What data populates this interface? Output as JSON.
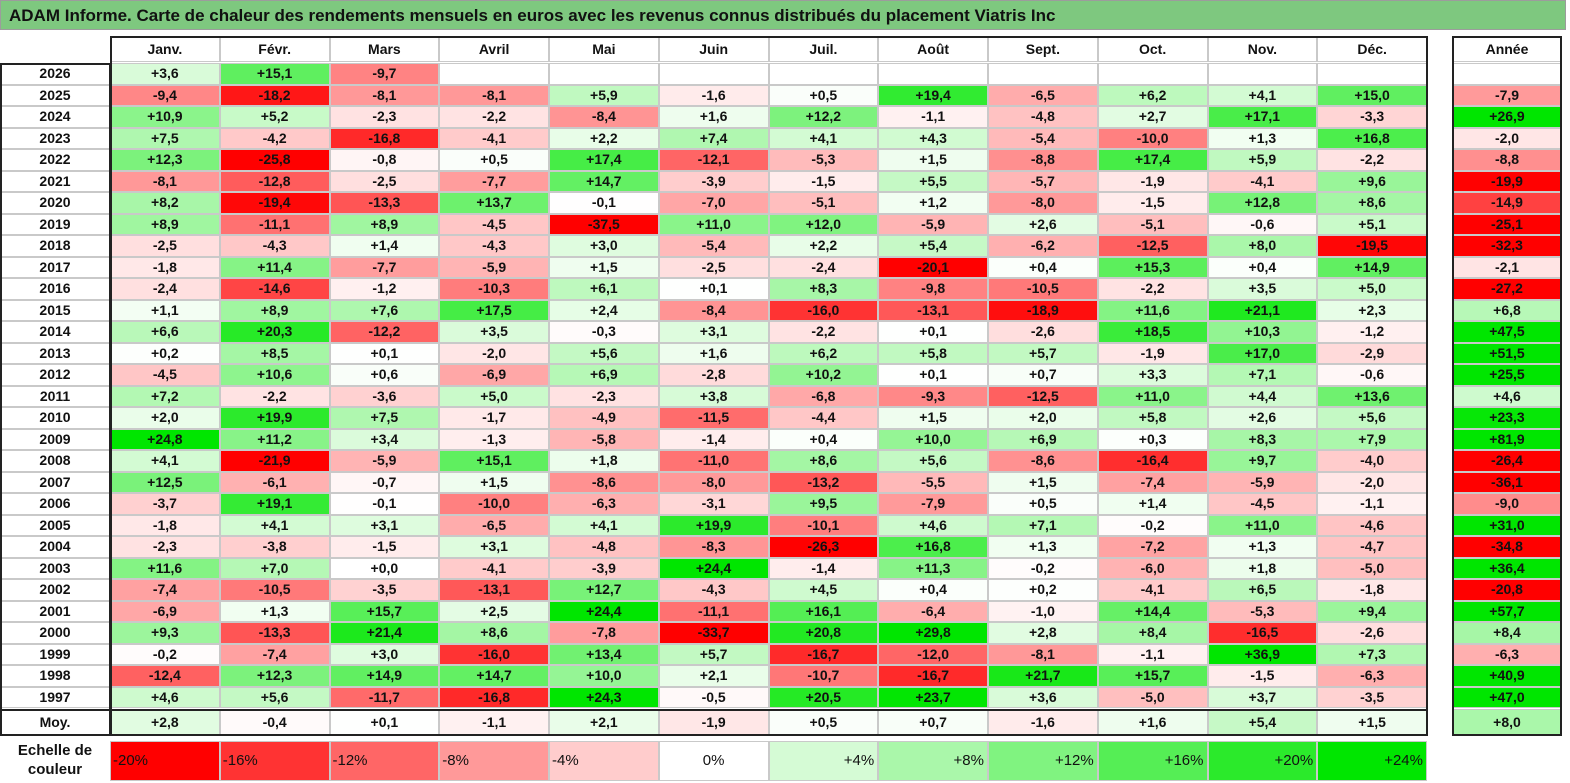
{
  "title": "ADAM Informe. Carte de chaleur des rendements mensuels en euros avec les revenus connus distribués du placement Viatris Inc",
  "chart_data": {
    "type": "heatmap",
    "title": "ADAM Informe. Carte de chaleur des rendements mensuels en euros avec les revenus connus distribués du placement Viatris Inc",
    "months": [
      "Janv.",
      "Févr.",
      "Mars",
      "Avril",
      "Mai",
      "Juin",
      "Juil.",
      "Août",
      "Sept.",
      "Oct.",
      "Nov.",
      "Déc."
    ],
    "year_header": "Année",
    "rows": [
      {
        "year": "2026",
        "values": [
          "+3,6",
          "+15,1",
          "-9,7",
          "",
          "",
          "",
          "",
          "",
          "",
          "",
          "",
          ""
        ],
        "annual": ""
      },
      {
        "year": "2025",
        "values": [
          "-9,4",
          "-18,2",
          "-8,1",
          "-8,1",
          "+5,9",
          "-1,6",
          "+0,5",
          "+19,4",
          "-6,5",
          "+6,2",
          "+4,1",
          "+15,0"
        ],
        "annual": "-7,9"
      },
      {
        "year": "2024",
        "values": [
          "+10,9",
          "+5,2",
          "-2,3",
          "-2,2",
          "-8,4",
          "+1,6",
          "+12,2",
          "-1,1",
          "-4,8",
          "+2,7",
          "+17,1",
          "-3,3"
        ],
        "annual": "+26,9"
      },
      {
        "year": "2023",
        "values": [
          "+7,5",
          "-4,2",
          "-16,8",
          "-4,1",
          "+2,2",
          "+7,4",
          "+4,1",
          "+4,3",
          "-5,4",
          "-10,0",
          "+1,3",
          "+16,8"
        ],
        "annual": "-2,0"
      },
      {
        "year": "2022",
        "values": [
          "+12,3",
          "-25,8",
          "-0,8",
          "+0,5",
          "+17,4",
          "-12,1",
          "-5,3",
          "+1,5",
          "-8,8",
          "+17,4",
          "+5,9",
          "-2,2"
        ],
        "annual": "-8,8"
      },
      {
        "year": "2021",
        "values": [
          "-8,1",
          "-12,8",
          "-2,5",
          "-7,7",
          "+14,7",
          "-3,9",
          "-1,5",
          "+5,5",
          "-5,7",
          "-1,9",
          "-4,1",
          "+9,6"
        ],
        "annual": "-19,9"
      },
      {
        "year": "2020",
        "values": [
          "+8,2",
          "-19,4",
          "-13,3",
          "+13,7",
          "-0,1",
          "-7,0",
          "-5,1",
          "+1,2",
          "-8,0",
          "-1,5",
          "+12,8",
          "+8,6"
        ],
        "annual": "-14,9"
      },
      {
        "year": "2019",
        "values": [
          "+8,9",
          "-11,1",
          "+8,9",
          "-4,5",
          "-37,5",
          "+11,0",
          "+12,0",
          "-5,9",
          "+2,6",
          "-5,1",
          "-0,6",
          "+5,1"
        ],
        "annual": "-25,1"
      },
      {
        "year": "2018",
        "values": [
          "-2,5",
          "-4,3",
          "+1,4",
          "-4,3",
          "+3,0",
          "-5,4",
          "+2,2",
          "+5,4",
          "-6,2",
          "-12,5",
          "+8,0",
          "-19,5"
        ],
        "annual": "-32,3"
      },
      {
        "year": "2017",
        "values": [
          "-1,8",
          "+11,4",
          "-7,7",
          "-5,9",
          "+1,5",
          "-2,5",
          "-2,4",
          "-20,1",
          "+0,4",
          "+15,3",
          "+0,4",
          "+14,9"
        ],
        "annual": "-2,1"
      },
      {
        "year": "2016",
        "values": [
          "-2,4",
          "-14,6",
          "-1,2",
          "-10,3",
          "+6,1",
          "+0,1",
          "+8,3",
          "-9,8",
          "-10,5",
          "-2,2",
          "+3,5",
          "+5,0"
        ],
        "annual": "-27,2"
      },
      {
        "year": "2015",
        "values": [
          "+1,1",
          "+8,9",
          "+7,6",
          "+17,5",
          "+2,4",
          "-8,4",
          "-16,0",
          "-13,1",
          "-18,9",
          "+11,6",
          "+21,1",
          "+2,3"
        ],
        "annual": "+6,8"
      },
      {
        "year": "2014",
        "values": [
          "+6,6",
          "+20,3",
          "-12,2",
          "+3,5",
          "-0,3",
          "+3,1",
          "-2,2",
          "+0,1",
          "-2,6",
          "+18,5",
          "+10,3",
          "-1,2"
        ],
        "annual": "+47,5"
      },
      {
        "year": "2013",
        "values": [
          "+0,2",
          "+8,5",
          "+0,1",
          "-2,0",
          "+5,6",
          "+1,6",
          "+6,2",
          "+5,8",
          "+5,7",
          "-1,9",
          "+17,0",
          "-2,9"
        ],
        "annual": "+51,5"
      },
      {
        "year": "2012",
        "values": [
          "-4,5",
          "+10,6",
          "+0,6",
          "-6,9",
          "+6,9",
          "-2,8",
          "+10,2",
          "+0,1",
          "+0,7",
          "+3,3",
          "+7,1",
          "-0,6"
        ],
        "annual": "+25,5"
      },
      {
        "year": "2011",
        "values": [
          "+7,2",
          "-2,2",
          "-3,6",
          "+5,0",
          "-2,3",
          "+3,8",
          "-6,8",
          "-9,3",
          "-12,5",
          "+11,0",
          "+4,4",
          "+13,6"
        ],
        "annual": "+4,6"
      },
      {
        "year": "2010",
        "values": [
          "+2,0",
          "+19,9",
          "+7,5",
          "-1,7",
          "-4,9",
          "-11,5",
          "-4,4",
          "+1,5",
          "+2,0",
          "+5,8",
          "+2,6",
          "+5,6"
        ],
        "annual": "+23,3"
      },
      {
        "year": "2009",
        "values": [
          "+24,8",
          "+11,2",
          "+3,4",
          "-1,3",
          "-5,8",
          "-1,4",
          "+0,4",
          "+10,0",
          "+6,9",
          "+0,3",
          "+8,3",
          "+7,9"
        ],
        "annual": "+81,9"
      },
      {
        "year": "2008",
        "values": [
          "+4,1",
          "-21,9",
          "-5,9",
          "+15,1",
          "+1,8",
          "-11,0",
          "+8,6",
          "+5,6",
          "-8,6",
          "-16,4",
          "+9,7",
          "-4,0"
        ],
        "annual": "-26,4"
      },
      {
        "year": "2007",
        "values": [
          "+12,5",
          "-6,1",
          "-0,7",
          "+1,5",
          "-8,6",
          "-8,0",
          "-13,2",
          "-5,5",
          "+1,5",
          "-7,4",
          "-5,9",
          "-2,0"
        ],
        "annual": "-36,1"
      },
      {
        "year": "2006",
        "values": [
          "-3,7",
          "+19,1",
          "-0,1",
          "-10,0",
          "-6,3",
          "-3,1",
          "+9,5",
          "-7,9",
          "+0,5",
          "+1,4",
          "-4,5",
          "-1,1"
        ],
        "annual": "-9,0"
      },
      {
        "year": "2005",
        "values": [
          "-1,8",
          "+4,1",
          "+3,1",
          "-6,5",
          "+4,1",
          "+19,9",
          "-10,1",
          "+4,6",
          "+7,1",
          "-0,2",
          "+11,0",
          "-4,6"
        ],
        "annual": "+31,0"
      },
      {
        "year": "2004",
        "values": [
          "-2,3",
          "-3,8",
          "-1,5",
          "+3,1",
          "-4,8",
          "-8,3",
          "-26,3",
          "+16,8",
          "+1,3",
          "-7,2",
          "+1,3",
          "-4,7"
        ],
        "annual": "-34,8"
      },
      {
        "year": "2003",
        "values": [
          "+11,6",
          "+7,0",
          "+0,0",
          "-4,1",
          "-3,9",
          "+24,4",
          "-1,4",
          "+11,3",
          "-0,2",
          "-6,0",
          "+1,8",
          "-5,0"
        ],
        "annual": "+36,4"
      },
      {
        "year": "2002",
        "values": [
          "-7,4",
          "-10,5",
          "-3,5",
          "-13,1",
          "+12,7",
          "-4,3",
          "+4,5",
          "+0,4",
          "+0,2",
          "-4,1",
          "+6,5",
          "-1,8"
        ],
        "annual": "-20,8"
      },
      {
        "year": "2001",
        "values": [
          "-6,9",
          "+1,3",
          "+15,7",
          "+2,5",
          "+24,4",
          "-11,1",
          "+16,1",
          "-6,4",
          "-1,0",
          "+14,4",
          "-5,3",
          "+9,4"
        ],
        "annual": "+57,7"
      },
      {
        "year": "2000",
        "values": [
          "+9,3",
          "-13,3",
          "+21,4",
          "+8,6",
          "-7,8",
          "-33,7",
          "+20,8",
          "+29,8",
          "+2,8",
          "+8,4",
          "-16,5",
          "-2,6"
        ],
        "annual": "+8,4"
      },
      {
        "year": "1999",
        "values": [
          "-0,2",
          "-7,4",
          "+3,0",
          "-16,0",
          "+13,4",
          "+5,7",
          "-16,7",
          "-12,0",
          "-8,1",
          "-1,1",
          "+36,9",
          "+7,3"
        ],
        "annual": "-6,3"
      },
      {
        "year": "1998",
        "values": [
          "-12,4",
          "+12,3",
          "+14,9",
          "+14,7",
          "+10,0",
          "+2,1",
          "-10,7",
          "-16,7",
          "+21,7",
          "+15,7",
          "-1,5",
          "-6,3"
        ],
        "annual": "+40,9"
      },
      {
        "year": "1997",
        "values": [
          "+4,6",
          "+5,6",
          "-11,7",
          "-16,8",
          "+24,3",
          "-0,5",
          "+20,5",
          "+23,7",
          "+3,6",
          "-5,0",
          "+3,7",
          "-3,5"
        ],
        "annual": "+47,0"
      }
    ],
    "average": {
      "label": "Moy.",
      "values": [
        "+2,8",
        "-0,4",
        "+0,1",
        "-1,1",
        "+2,1",
        "-1,9",
        "+0,5",
        "+0,7",
        "-1,6",
        "+1,6",
        "+5,4",
        "+1,5"
      ],
      "annual": "+8,0"
    },
    "scale": {
      "label_line1": "Echelle de",
      "label_line2": "couleur",
      "steps": [
        "-20%",
        "-16%",
        "-12%",
        "-8%",
        "-4%",
        "0%",
        "+4%",
        "+8%",
        "+12%",
        "+16%",
        "+20%",
        "+24%"
      ],
      "step_values": [
        -20,
        -16,
        -12,
        -8,
        -4,
        0,
        4,
        8,
        12,
        16,
        20,
        24
      ]
    }
  }
}
